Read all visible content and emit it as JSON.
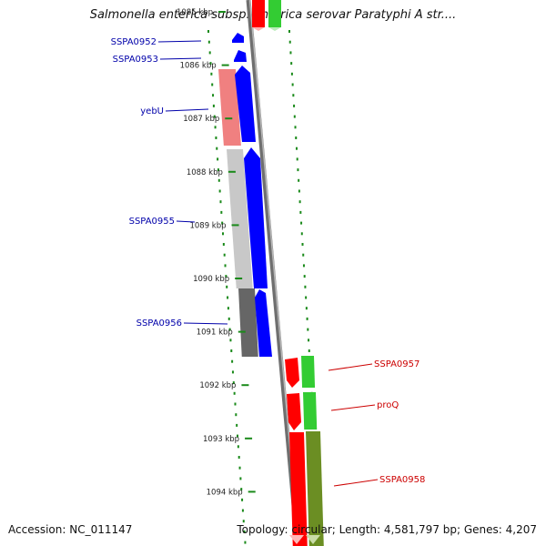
{
  "title": "Salmonella enterica subsp. enterica serovar Paratyphi A str....",
  "accession": "Accession: NC_011147",
  "topology": "Topology: circular; Length: 4,581,797 bp; Genes: 4,207",
  "ticks": [
    {
      "label": "1085 kbp",
      "kbp": 1085
    },
    {
      "label": "1086 kbp",
      "kbp": 1086
    },
    {
      "label": "1087 kbp",
      "kbp": 1087
    },
    {
      "label": "1088 kbp",
      "kbp": 1088
    },
    {
      "label": "1089 kbp",
      "kbp": 1089
    },
    {
      "label": "1090 kbp",
      "kbp": 1090
    },
    {
      "label": "1091 kbp",
      "kbp": 1091
    },
    {
      "label": "1092 kbp",
      "kbp": 1092
    },
    {
      "label": "1093 kbp",
      "kbp": 1093
    },
    {
      "label": "1094 kbp",
      "kbp": 1094
    }
  ],
  "genes": [
    {
      "name": "SSPA0952",
      "strand": "left",
      "color": "#0000cc"
    },
    {
      "name": "SSPA0953",
      "strand": "left",
      "color": "#0000cc"
    },
    {
      "name": "yebU",
      "strand": "left",
      "color": "#0000cc"
    },
    {
      "name": "SSPA0955",
      "strand": "left",
      "color": "#0000cc"
    },
    {
      "name": "SSPA0956",
      "strand": "left",
      "color": "#0000cc"
    },
    {
      "name": "SSPA0957",
      "strand": "right",
      "color": "#cc0000"
    },
    {
      "name": "proQ",
      "strand": "right",
      "color": "#cc0000"
    },
    {
      "name": "SSPA0958",
      "strand": "right",
      "color": "#cc0000"
    }
  ],
  "colors": {
    "forward_gene": "#ff0000",
    "reverse_gene": "#0000ff",
    "cds_green": "#33cc33",
    "cds_olive": "#6b8e23",
    "cds_pink": "#f08080",
    "cds_gray_light": "#c8c8c8",
    "cds_gray_dark": "#666666",
    "backbone": "#8a8a8a",
    "tick_green": "#1a8a1a",
    "left_label": "#0000aa",
    "right_label": "#cc0000"
  }
}
